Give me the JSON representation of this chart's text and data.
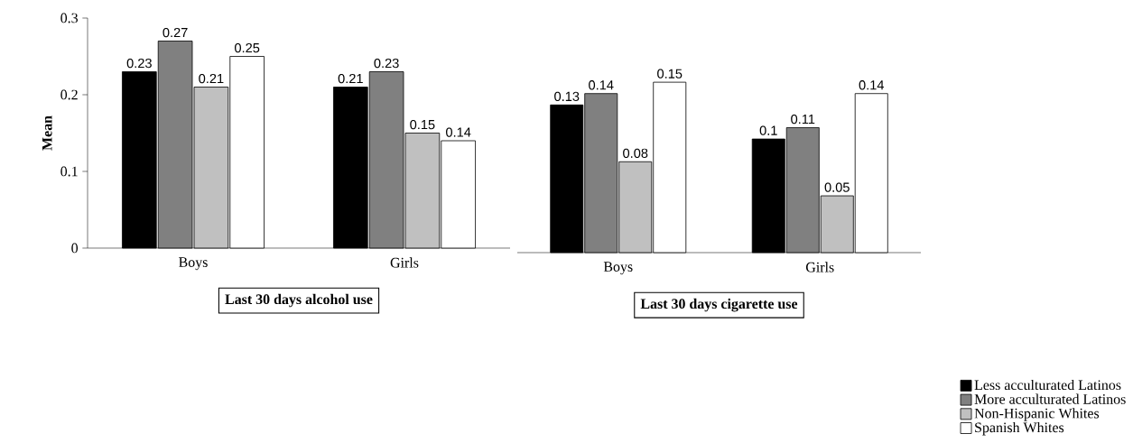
{
  "chart_data": [
    {
      "type": "bar",
      "xlabel": "Last 30 days alcohol use",
      "ylabel": "Mean",
      "categories": [
        "Boys",
        "Girls"
      ],
      "ylim": [
        0,
        0.3
      ],
      "yticks": [
        0,
        0.1,
        0.2,
        0.3
      ],
      "series": [
        {
          "color": "#000000",
          "values": [
            0.23,
            0.21
          ],
          "value_labels": [
            "0.23",
            "0.21"
          ]
        },
        {
          "color": "#808080",
          "values": [
            0.27,
            0.23
          ],
          "value_labels": [
            "0.27",
            "0.23"
          ]
        },
        {
          "color": "#c0c0c0",
          "values": [
            0.21,
            0.15
          ],
          "value_labels": [
            "0.21",
            "0.15"
          ]
        },
        {
          "color": "#ffffff",
          "values": [
            0.25,
            0.14
          ],
          "value_labels": [
            "0.25",
            "0.14"
          ]
        }
      ]
    },
    {
      "type": "bar",
      "xlabel": "Last 30 days cigarette use",
      "categories": [
        "Boys",
        "Girls"
      ],
      "tick_labels": "x",
      "legend": "bottom right",
      "series": [
        {
          "name": "Less acculturated Latinos",
          "color": "#000000",
          "values": [
            0.13,
            0.1
          ],
          "value_labels": [
            "0.13",
            "0.1"
          ]
        },
        {
          "name": "More acculturated Latinos",
          "color": "#808080",
          "values": [
            0.14,
            0.11
          ],
          "value_labels": [
            "0.14",
            "0.11"
          ]
        },
        {
          "name": "Non-Hispanic Whites",
          "color": "#c0c0c0",
          "values": [
            0.08,
            0.05
          ],
          "value_labels": [
            "0.08",
            "0.05"
          ]
        },
        {
          "name": "Spanish Whites",
          "color": "#ffffff",
          "values": [
            0.15,
            0.14
          ],
          "value_labels": [
            "0.15",
            "0.14"
          ]
        }
      ]
    }
  ]
}
